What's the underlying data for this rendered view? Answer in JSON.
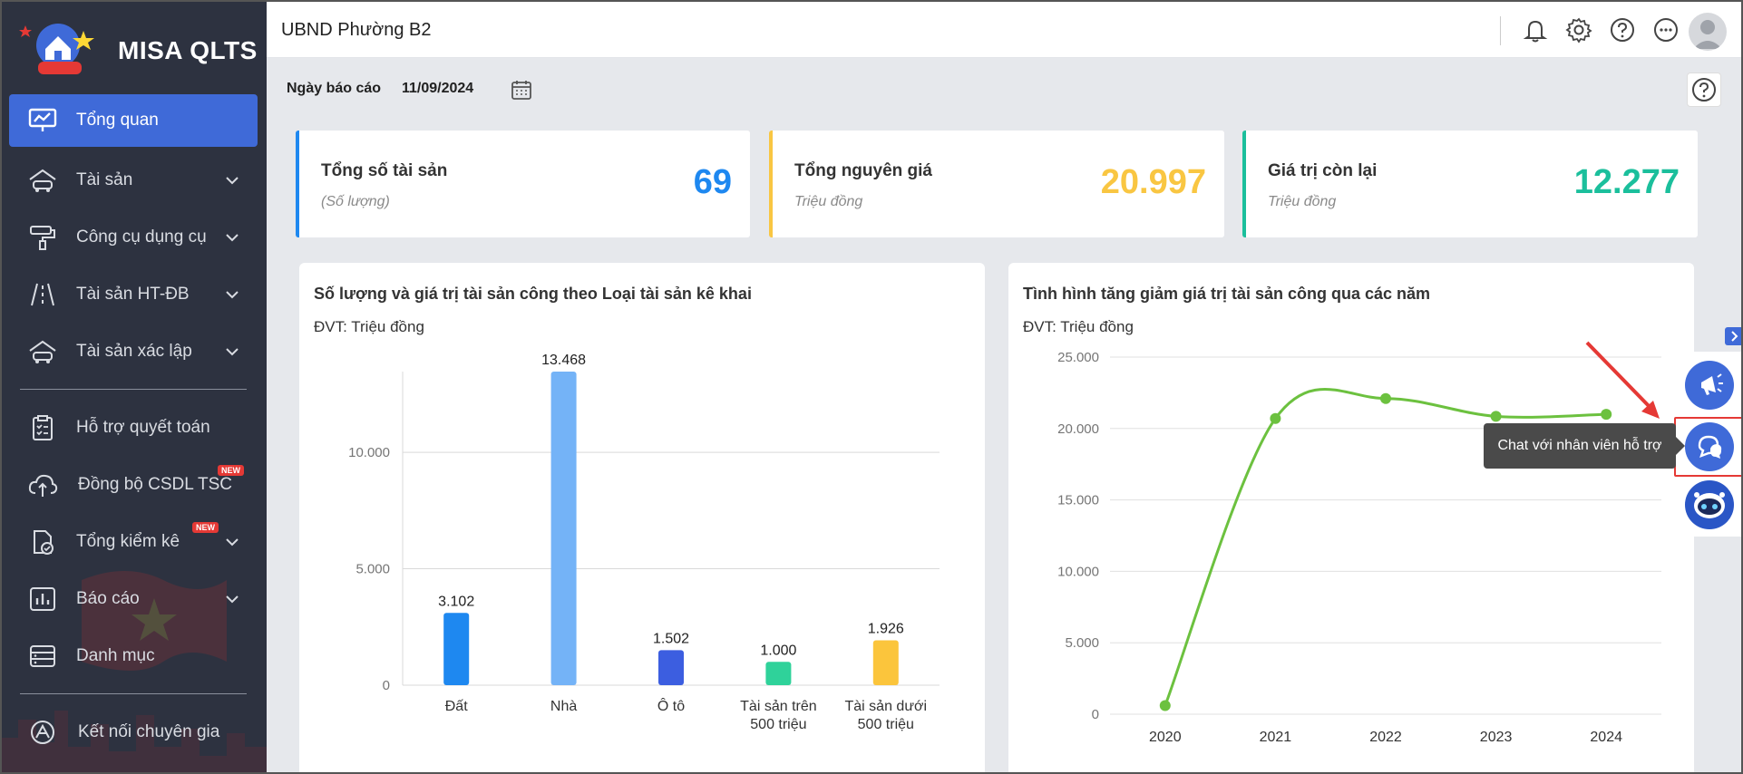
{
  "app": {
    "brand": "MISA QLTS",
    "org_name": "UBND Phường B2"
  },
  "sidebar": {
    "items": [
      {
        "label": "Tổng quan",
        "icon": "chart-monitor-icon",
        "active": true,
        "has_chevron": false
      },
      {
        "label": "Tài sản",
        "icon": "house-car-icon",
        "has_chevron": true
      },
      {
        "label": "Công cụ dụng cụ",
        "icon": "paint-roller-icon",
        "has_chevron": true
      },
      {
        "label": "Tài sản HT-ĐB",
        "icon": "road-icon",
        "has_chevron": true
      },
      {
        "label": "Tài sản xác lập",
        "icon": "house-car-icon",
        "has_chevron": true
      },
      {
        "label": "Hỗ trợ quyết toán",
        "icon": "clipboard-check-icon",
        "has_chevron": false
      },
      {
        "label": "Đồng bộ CSDL TSC",
        "icon": "cloud-upload-icon",
        "has_chevron": false,
        "badge": "NEW"
      },
      {
        "label": "Tổng kiểm kê",
        "icon": "document-check-icon",
        "has_chevron": true,
        "badge": "NEW"
      },
      {
        "label": "Báo cáo",
        "icon": "bar-chart-icon",
        "has_chevron": true
      },
      {
        "label": "Danh mục",
        "icon": "list-icon",
        "has_chevron": false
      },
      {
        "label": "Kết nối chuyên gia",
        "icon": "expert-logo-icon",
        "has_chevron": false
      }
    ]
  },
  "report": {
    "date_label": "Ngày báo cáo",
    "date_value": "11/09/2024"
  },
  "stats": [
    {
      "title": "Tổng số tài sản",
      "sub": "(Số lượng)",
      "value": "69",
      "color": "#1e88f0"
    },
    {
      "title": "Tổng nguyên giá",
      "sub": "Triệu đồng",
      "value": "20.997",
      "color": "#f9c642"
    },
    {
      "title": "Giá trị còn lại",
      "sub": "Triệu đồng",
      "value": "12.277",
      "color": "#1bbf9c"
    }
  ],
  "charts": {
    "bar": {
      "title": "Số lượng và giá trị tài sản công theo Loại tài sản kê khai",
      "unit": "ĐVT: Triệu đồng"
    },
    "line": {
      "title": "Tình hình tăng giảm giá trị tài sản công qua các năm",
      "unit": "ĐVT: Triệu đồng"
    }
  },
  "chart_data": [
    {
      "type": "bar",
      "categories": [
        [
          "Đất"
        ],
        [
          "Nhà"
        ],
        [
          "Ô tô"
        ],
        [
          "Tài sản trên",
          "500 triệu"
        ],
        [
          "Tài sản dưới",
          "500 triệu"
        ]
      ],
      "values": [
        3102,
        13468,
        1502,
        1000,
        1926
      ],
      "value_labels": [
        "3.102",
        "13.468",
        "1.502",
        "1.000",
        "1.926"
      ],
      "colors": [
        "#1e88f0",
        "#74b3f7",
        "#3c5ee0",
        "#2fd29a",
        "#fbc53c"
      ],
      "yticks": [
        0,
        5000,
        10000
      ],
      "ytick_labels": [
        "0",
        "5.000",
        "10.000"
      ],
      "ylim": [
        0,
        13468
      ]
    },
    {
      "type": "line",
      "x": [
        "2020",
        "2021",
        "2022",
        "2023",
        "2024"
      ],
      "values": [
        600,
        20700,
        22100,
        20850,
        20997
      ],
      "color": "#6cc13f",
      "yticks": [
        0,
        5000,
        10000,
        15000,
        20000,
        25000
      ],
      "ytick_labels": [
        "0",
        "5.000",
        "10.000",
        "15.000",
        "20.000",
        "25.000"
      ],
      "ylim": [
        0,
        25000
      ]
    }
  ],
  "support": {
    "tooltip": "Chat với nhân viên hỗ trợ"
  }
}
